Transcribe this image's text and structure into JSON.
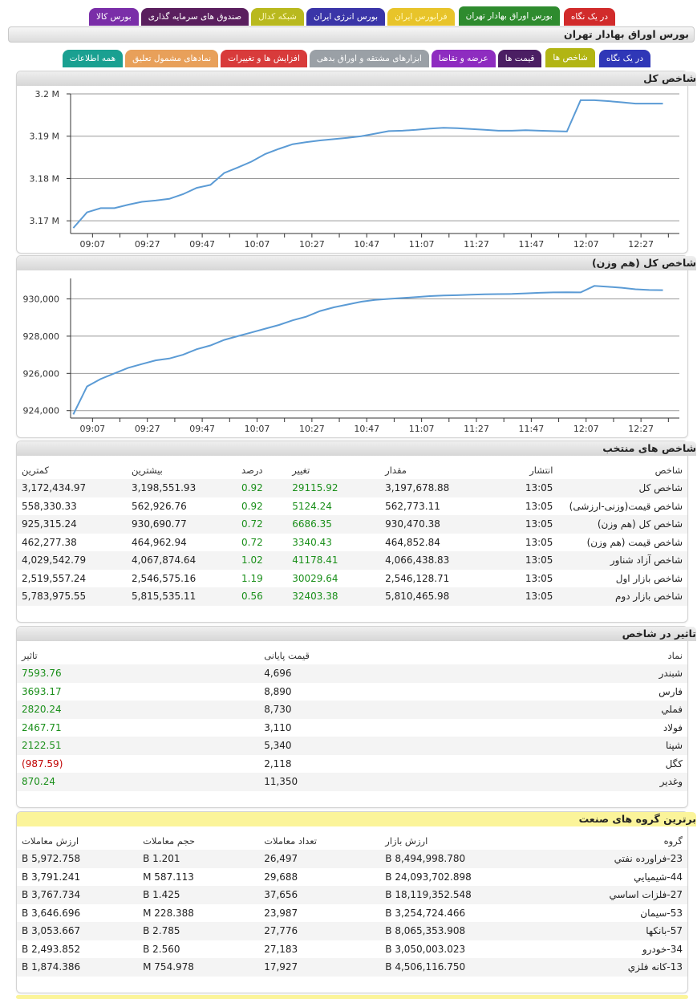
{
  "top_tabs": [
    {
      "label": "در یک نگاه",
      "color": "#d12b2b"
    },
    {
      "label": "بورس اوراق بهادار تهران",
      "color": "#2e8b2e",
      "active": true
    },
    {
      "label": "فرابورس ایران",
      "color": "#e8c42a"
    },
    {
      "label": "بورس انرژی ایران",
      "color": "#3a35a8"
    },
    {
      "label": "شبکه کدال",
      "color": "#b9b91e"
    },
    {
      "label": "صندوق های سرمایه گذاری",
      "color": "#5a1f5e"
    },
    {
      "label": "بورس کالا",
      "color": "#7a2ea8"
    }
  ],
  "page_title": "بورس اوراق بهادار تهران",
  "sub_tabs": [
    {
      "label": "در یک نگاه",
      "color": "#2f37b7"
    },
    {
      "label": "شاخص ها",
      "color": "#b2b514",
      "active": true
    },
    {
      "label": "قیمت ها",
      "color": "#4b1e63"
    },
    {
      "label": "عرضه و تقاضا",
      "color": "#8e2cc0"
    },
    {
      "label": "ابزارهای مشتقه و اوراق بدهی",
      "color": "#9aa0a6"
    },
    {
      "label": "افزایش ها و تغییرات",
      "color": "#d83b3b"
    },
    {
      "label": "نمادهای مشمول تعلیق",
      "color": "#e8a05a"
    },
    {
      "label": "همه اطلاعات",
      "color": "#1aa091"
    }
  ],
  "x_ticks": [
    "09:07",
    "09:27",
    "09:47",
    "10:07",
    "10:27",
    "10:47",
    "11:07",
    "11:27",
    "11:47",
    "12:07",
    "12:27"
  ],
  "chart1": {
    "title": "شاخص کل",
    "chart_data": {
      "type": "line",
      "title": "شاخص کل",
      "x": [
        "09:00",
        "09:05",
        "09:10",
        "09:15",
        "09:20",
        "09:25",
        "09:30",
        "09:35",
        "09:40",
        "09:45",
        "09:50",
        "09:55",
        "10:00",
        "10:05",
        "10:10",
        "10:15",
        "10:20",
        "10:25",
        "10:30",
        "10:35",
        "10:40",
        "10:45",
        "10:50",
        "10:55",
        "11:00",
        "11:05",
        "11:10",
        "11:15",
        "11:20",
        "11:25",
        "11:30",
        "11:35",
        "11:40",
        "11:45",
        "11:50",
        "11:55",
        "12:00",
        "12:05",
        "12:10",
        "12:15",
        "12:20",
        "12:25",
        "12:30",
        "12:35"
      ],
      "y_tick_labels": [
        "3.17 M",
        "3.18 M",
        "3.19 M",
        "3.2 M"
      ],
      "ylim": [
        3.167,
        3.2
      ],
      "values": [
        3.1683,
        3.172,
        3.173,
        3.173,
        3.1738,
        3.1745,
        3.1748,
        3.1752,
        3.1763,
        3.1778,
        3.1785,
        3.1813,
        3.1826,
        3.184,
        3.1858,
        3.187,
        3.1881,
        3.1886,
        3.189,
        3.1893,
        3.1896,
        3.19,
        3.1906,
        3.1912,
        3.1913,
        3.1915,
        3.1918,
        3.192,
        3.1919,
        3.1917,
        3.1915,
        3.1913,
        3.1913,
        3.1914,
        3.1913,
        3.1912,
        3.1911,
        3.1985,
        3.1985,
        3.1983,
        3.198,
        3.1977,
        3.1977,
        3.1977
      ],
      "grid": true
    }
  },
  "chart2": {
    "title": "شاخص کل (هم وزن)",
    "chart_data": {
      "type": "line",
      "title": "شاخص کل (هم وزن)",
      "x": [
        "09:00",
        "09:05",
        "09:10",
        "09:15",
        "09:20",
        "09:25",
        "09:30",
        "09:35",
        "09:40",
        "09:45",
        "09:50",
        "09:55",
        "10:00",
        "10:05",
        "10:10",
        "10:15",
        "10:20",
        "10:25",
        "10:30",
        "10:35",
        "10:40",
        "10:45",
        "10:50",
        "10:55",
        "11:00",
        "11:05",
        "11:10",
        "11:15",
        "11:20",
        "11:25",
        "11:30",
        "11:35",
        "11:40",
        "11:45",
        "11:50",
        "11:55",
        "12:00",
        "12:05",
        "12:10",
        "12:15",
        "12:20",
        "12:25",
        "12:30",
        "12:35"
      ],
      "y_tick_labels": [
        "924,000",
        "926,000",
        "928,000",
        "930,000"
      ],
      "ylim": [
        923600,
        931100
      ],
      "values": [
        923800,
        925300,
        925700,
        926000,
        926300,
        926500,
        926700,
        926800,
        927000,
        927300,
        927500,
        927800,
        928000,
        928200,
        928400,
        928600,
        928850,
        929050,
        929350,
        929550,
        929700,
        929850,
        929950,
        930000,
        930050,
        930100,
        930150,
        930180,
        930200,
        930230,
        930250,
        930260,
        930270,
        930300,
        930330,
        930350,
        930360,
        930350,
        930700,
        930650,
        930600,
        930520,
        930480,
        930470
      ],
      "grid": true
    }
  },
  "selected": {
    "title": "شاخص های منتخب",
    "headers": [
      "شاخص",
      "انتشار",
      "مقدار",
      "تغییر",
      "درصد",
      "بیشترین",
      "کمترین"
    ],
    "rows": [
      [
        "شاخص کل",
        "13:05",
        "3,197,678.88",
        "29115.92",
        "0.92",
        "3,198,551.93",
        "3,172,434.97"
      ],
      [
        "شاخص قیمت(وزنی-ارزشی)",
        "13:05",
        "562,773.11",
        "5124.24",
        "0.92",
        "562,926.76",
        "558,330.33"
      ],
      [
        "شاخص کل (هم وزن)",
        "13:05",
        "930,470.38",
        "6686.35",
        "0.72",
        "930,690.77",
        "925,315.24"
      ],
      [
        "شاخص قیمت (هم وزن)",
        "13:05",
        "464,852.84",
        "3340.43",
        "0.72",
        "464,962.94",
        "462,277.38"
      ],
      [
        "شاخص آزاد شناور",
        "13:05",
        "4,066,438.83",
        "41178.41",
        "1.02",
        "4,067,874.64",
        "4,029,542.79"
      ],
      [
        "شاخص بازار اول",
        "13:05",
        "2,546,128.71",
        "30029.64",
        "1.19",
        "2,546,575.16",
        "2,519,557.24"
      ],
      [
        "شاخص بازار دوم",
        "13:05",
        "5,810,465.98",
        "32403.38",
        "0.56",
        "5,815,535.11",
        "5,783,975.55"
      ]
    ]
  },
  "impact": {
    "title": "تاثیر در شاخص",
    "headers": [
      "نماد",
      "قیمت پایانی",
      "تاثیر"
    ],
    "rows": [
      [
        "شبندر",
        "4,696",
        "7593.76",
        "pos"
      ],
      [
        "فارس",
        "8,890",
        "3693.17",
        "pos"
      ],
      [
        "فملي",
        "8,730",
        "2820.24",
        "pos"
      ],
      [
        "فولاد",
        "3,110",
        "2467.71",
        "pos"
      ],
      [
        "شپنا",
        "5,340",
        "2122.51",
        "pos"
      ],
      [
        "کگل",
        "2,118",
        "(987.59)",
        "neg"
      ],
      [
        "وغدیر",
        "11,350",
        "870.24",
        "pos"
      ]
    ]
  },
  "groups": {
    "title": "برترین گروه های صنعت",
    "headers": [
      "گروه",
      "ارزش بازار",
      "تعداد معاملات",
      "حجم معاملات",
      "ارزش معاملات"
    ],
    "rows": [
      [
        "23-فراورده نفتي",
        "8,494,998.780 B",
        "26,497",
        "1.201 B",
        "5,972.758 B"
      ],
      [
        "44-شيميايي",
        "24,093,702.898 B",
        "29,688",
        "587.113 M",
        "3,791.241 B"
      ],
      [
        "27-فلزات اساسي",
        "18,119,352.548 B",
        "37,656",
        "1.425 B",
        "3,767.734 B"
      ],
      [
        "53-سيمان",
        "3,254,724.466 B",
        "23,987",
        "228.388 M",
        "3,646.696 B"
      ],
      [
        "57-بانکها",
        "8,065,353.908 B",
        "27,776",
        "2.785 B",
        "3,053.667 B"
      ],
      [
        "34-خودرو",
        "3,050,003.023 B",
        "27,183",
        "2.560 B",
        "2,493.852 B"
      ],
      [
        "13-کانه فلزي",
        "4,506,116.750 B",
        "17,927",
        "754.978 M",
        "1,874.386 B"
      ]
    ]
  },
  "colors": {
    "line": "#5b9bd5",
    "positive": "#1a8f1a",
    "negative": "#c00000"
  }
}
